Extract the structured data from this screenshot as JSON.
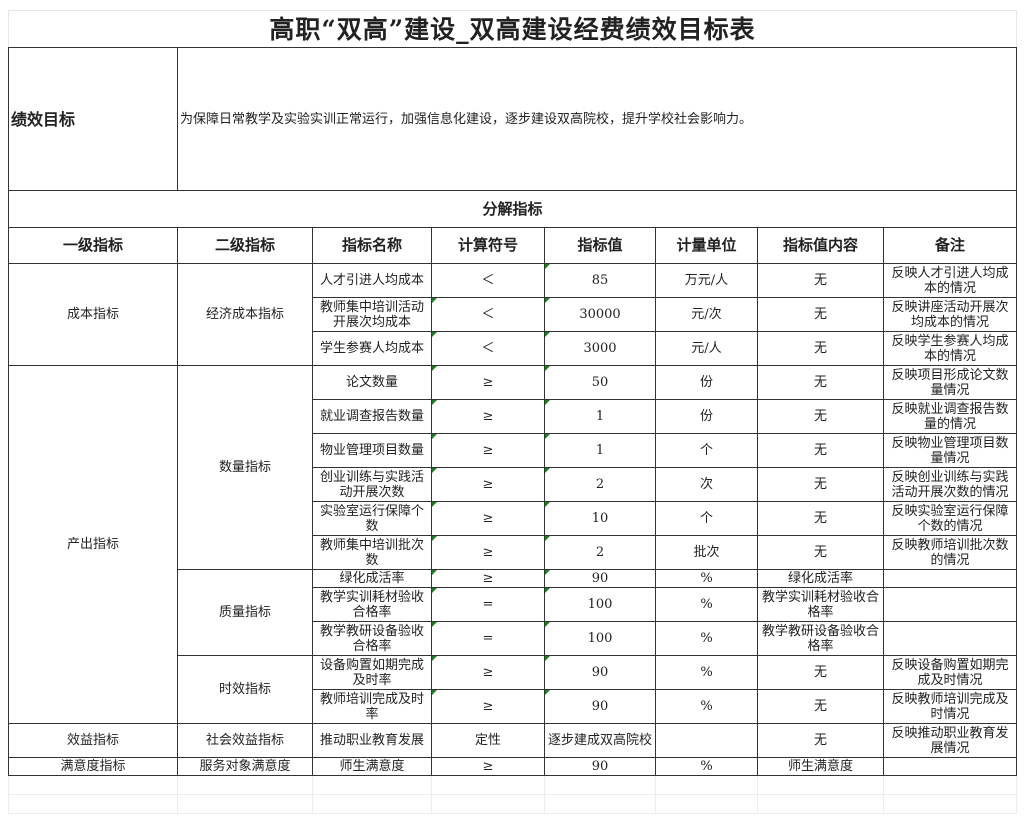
{
  "title": "高职“双高”建设_双高建设经费绩效目标表",
  "goal": {
    "label": "绩效目标",
    "text": "为保障日常教学及实验实训正常运行，加强信息化建设，逐步建设双高院校，提升学校社会影响力。"
  },
  "section_label": "分解指标",
  "headers": [
    "一级指标",
    "二级指标",
    "指标名称",
    "计算符号",
    "指标值",
    "计量单位",
    "指标值内容",
    "备注"
  ],
  "groups": [
    {
      "level1": "成本指标",
      "subgroups": [
        {
          "level2": "经济成本指标",
          "items": [
            {
              "name": "人才引进人均成本",
              "symbol": "＜",
              "value": "85",
              "unit": "万元/人",
              "content": "无",
              "note": "反映人才引进人均成本的情况"
            },
            {
              "name": "教师集中培训活动开展次均成本",
              "symbol": "＜",
              "value": "30000",
              "unit": "元/次",
              "content": "无",
              "note": "反映讲座活动开展次均成本的情况"
            },
            {
              "name": "学生参赛人均成本",
              "symbol": "＜",
              "value": "3000",
              "unit": "元/人",
              "content": "无",
              "note": "反映学生参赛人均成本的情况"
            }
          ]
        }
      ]
    },
    {
      "level1": "产出指标",
      "subgroups": [
        {
          "level2": "数量指标",
          "items": [
            {
              "name": "论文数量",
              "symbol": "≥",
              "value": "50",
              "unit": "份",
              "content": "无",
              "note": "反映项目形成论文数量情况"
            },
            {
              "name": "就业调查报告数量",
              "symbol": "≥",
              "value": "1",
              "unit": "份",
              "content": "无",
              "note": "反映就业调查报告数量的情况"
            },
            {
              "name": "物业管理项目数量",
              "symbol": "≥",
              "value": "1",
              "unit": "个",
              "content": "无",
              "note": "反映物业管理项目数量情况"
            },
            {
              "name": "创业训练与实践活动开展次数",
              "symbol": "≥",
              "value": "2",
              "unit": "次",
              "content": "无",
              "note": "反映创业训练与实践活动开展次数的情况"
            },
            {
              "name": "实验室运行保障个数",
              "symbol": "≥",
              "value": "10",
              "unit": "个",
              "content": "无",
              "note": "反映实验室运行保障个数的情况"
            },
            {
              "name": "教师集中培训批次数",
              "symbol": "≥",
              "value": "2",
              "unit": "批次",
              "content": "无",
              "note": "反映教师培训批次数的情况"
            }
          ]
        },
        {
          "level2": "质量指标",
          "items": [
            {
              "name": "绿化成活率",
              "symbol": "≥",
              "value": "90",
              "unit": "%",
              "content": "绿化成活率",
              "note": ""
            },
            {
              "name": "教学实训耗材验收合格率",
              "symbol": "=",
              "value": "100",
              "unit": "%",
              "content": "教学实训耗材验收合格率",
              "note": ""
            },
            {
              "name": "教学教研设备验收合格率",
              "symbol": "=",
              "value": "100",
              "unit": "%",
              "content": "教学教研设备验收合格率",
              "note": ""
            }
          ]
        },
        {
          "level2": "时效指标",
          "items": [
            {
              "name": "设备购置如期完成及时率",
              "symbol": "≥",
              "value": "90",
              "unit": "%",
              "content": "无",
              "note": "反映设备购置如期完成及时情况"
            },
            {
              "name": "教师培训完成及时率",
              "symbol": "≥",
              "value": "90",
              "unit": "%",
              "content": "无",
              "note": "反映教师培训完成及时情况"
            }
          ]
        }
      ]
    },
    {
      "level1": "效益指标",
      "subgroups": [
        {
          "level2": "社会效益指标",
          "items": [
            {
              "name": "推动职业教育发展",
              "symbol": "定性",
              "value": "逐步建成双高院校",
              "unit": "",
              "content": "无",
              "note": "反映推动职业教育发展情况"
            }
          ]
        }
      ]
    },
    {
      "level1": "满意度指标",
      "subgroups": [
        {
          "level2": "服务对象满意度",
          "items": [
            {
              "name": "师生满意度",
              "symbol": "≥",
              "value": "90",
              "unit": "%",
              "content": "师生满意度",
              "note": ""
            }
          ]
        }
      ]
    }
  ]
}
